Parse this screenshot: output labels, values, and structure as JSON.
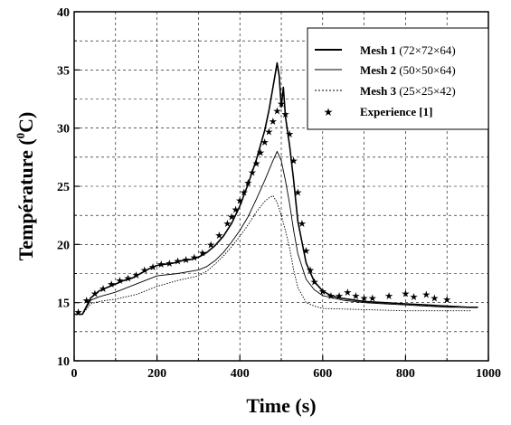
{
  "chart_data": {
    "type": "line",
    "xlabel": "Time (s)",
    "ylabel_main": "Température (",
    "ylabel_sup": "0",
    "ylabel_unit": "C)",
    "xlim": [
      0,
      1000
    ],
    "ylim": [
      10,
      40
    ],
    "xticks": [
      "0",
      "200",
      "400",
      "600",
      "800",
      "1000"
    ],
    "yticks": [
      "10",
      "15",
      "20",
      "25",
      "30",
      "35",
      "40"
    ],
    "grid": true,
    "legend_position": "top-right",
    "series": [
      {
        "name": "Mesh 1",
        "name_suffix": "(72×72×64)",
        "style": "solid-thick",
        "x": [
          0,
          20,
          40,
          60,
          80,
          100,
          120,
          140,
          160,
          180,
          200,
          220,
          240,
          260,
          280,
          300,
          320,
          340,
          360,
          380,
          400,
          420,
          440,
          460,
          470,
          480,
          490,
          495,
          500,
          505,
          510,
          520,
          530,
          540,
          560,
          580,
          600,
          620,
          640,
          660,
          680,
          700,
          750,
          800,
          850,
          900,
          950,
          975
        ],
        "y": [
          14,
          14,
          15.4,
          16.0,
          16.3,
          16.6,
          16.9,
          17.1,
          17.5,
          17.9,
          18.2,
          18.3,
          18.4,
          18.6,
          18.7,
          18.9,
          19.3,
          19.9,
          20.7,
          21.8,
          23.3,
          25.2,
          27.3,
          29.8,
          31.5,
          33.5,
          35.6,
          34.5,
          31.8,
          33.5,
          31.0,
          28.5,
          25.5,
          22.0,
          18.4,
          16.8,
          16.0,
          15.6,
          15.4,
          15.3,
          15.2,
          15.1,
          15.0,
          14.9,
          14.8,
          14.7,
          14.6,
          14.6
        ]
      },
      {
        "name": "Mesh 2",
        "name_suffix": "(50×50×64)",
        "style": "solid-thin",
        "x": [
          0,
          20,
          40,
          60,
          80,
          100,
          150,
          200,
          250,
          300,
          320,
          340,
          360,
          380,
          400,
          420,
          440,
          460,
          480,
          490,
          500,
          510,
          520,
          530,
          540,
          560,
          580,
          600,
          650,
          700,
          750,
          800,
          850,
          900,
          950
        ],
        "y": [
          14,
          14,
          15.2,
          15.5,
          15.7,
          15.9,
          16.6,
          17.3,
          17.5,
          17.8,
          18.1,
          18.6,
          19.3,
          20.2,
          21.2,
          22.4,
          23.9,
          25.5,
          27.2,
          28.0,
          27.2,
          25.5,
          23.5,
          21.2,
          19.2,
          17.0,
          16.1,
          15.6,
          15.2,
          15.0,
          14.9,
          14.8,
          14.7,
          14.6,
          14.6
        ]
      },
      {
        "name": "Mesh 3",
        "name_suffix": "(25×25×42)",
        "style": "dotted",
        "x": [
          0,
          20,
          40,
          60,
          80,
          100,
          150,
          200,
          250,
          300,
          320,
          340,
          360,
          380,
          400,
          420,
          440,
          460,
          470,
          480,
          490,
          500,
          510,
          520,
          530,
          540,
          560,
          580,
          600,
          700,
          800,
          900,
          960
        ],
        "y": [
          14,
          14,
          14.9,
          15.1,
          15.2,
          15.3,
          15.7,
          16.4,
          16.9,
          17.3,
          17.7,
          18.3,
          19.0,
          19.8,
          20.7,
          21.7,
          22.8,
          23.7,
          24.0,
          24.2,
          23.6,
          22.5,
          21.2,
          19.7,
          17.8,
          16.3,
          15.0,
          14.7,
          14.5,
          14.4,
          14.3,
          14.3,
          14.3
        ]
      },
      {
        "name": "Experience [1]",
        "name_suffix": "",
        "style": "stars",
        "x": [
          10,
          30,
          50,
          70,
          90,
          110,
          130,
          150,
          170,
          190,
          210,
          230,
          250,
          270,
          290,
          310,
          330,
          350,
          370,
          380,
          390,
          400,
          410,
          420,
          430,
          440,
          450,
          460,
          470,
          480,
          490,
          500,
          510,
          520,
          530,
          540,
          550,
          560,
          570,
          580,
          600,
          620,
          640,
          660,
          680,
          700,
          720,
          760,
          800,
          820,
          850,
          870,
          900
        ],
        "y": [
          14.2,
          15.2,
          15.8,
          16.2,
          16.6,
          16.9,
          17.1,
          17.4,
          17.8,
          18.1,
          18.3,
          18.4,
          18.6,
          18.7,
          18.9,
          19.3,
          20.0,
          20.8,
          21.8,
          22.4,
          23.0,
          23.8,
          24.5,
          25.3,
          26.2,
          27.0,
          27.9,
          28.8,
          29.7,
          30.6,
          31.5,
          32.1,
          31.2,
          29.5,
          27.2,
          24.5,
          21.8,
          19.5,
          17.8,
          16.8,
          16.0,
          15.6,
          15.6,
          15.9,
          15.6,
          15.4,
          15.4,
          15.6,
          15.8,
          15.5,
          15.7,
          15.4,
          15.3
        ]
      }
    ]
  }
}
